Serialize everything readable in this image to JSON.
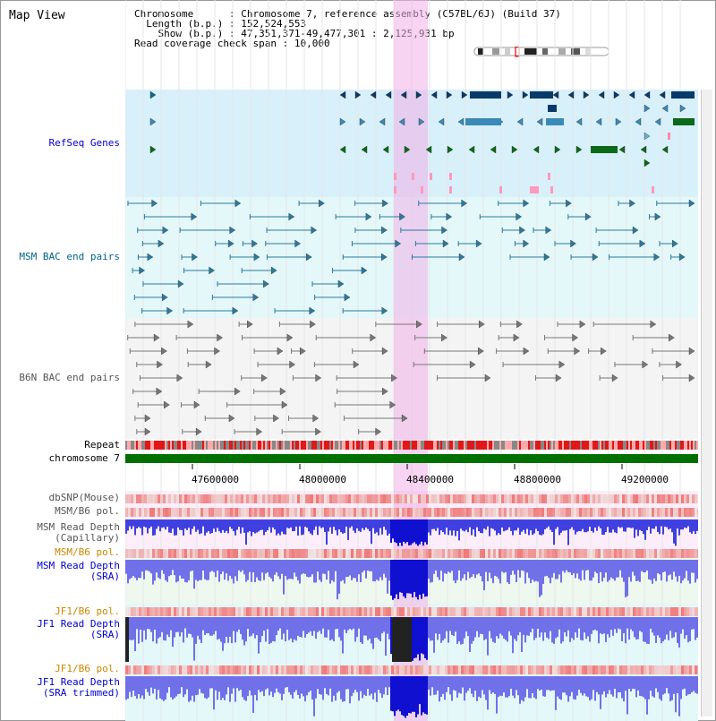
{
  "title": "Map View",
  "info": {
    "chromosome_key": "Chromosome",
    "chromosome_val": "Chromosome 7, reference assembly (C57BL/6J) (Build 37)",
    "length_key": "Length (b.p.)",
    "length_val": "152,524,553",
    "show_key": "Show (b.p.)",
    "show_val": "47,351,371-49,477,301 : 2,125,931 bp",
    "span_key": "Read coverage check span",
    "span_val": "10,000"
  },
  "track_labels": {
    "refseq": "RefSeq Genes",
    "msm_bac": "MSM BAC end pairs",
    "b6n_bac": "B6N BAC end pairs",
    "repeat": "Repeat",
    "chromosome": "chromosome 7",
    "dbsnp": "dbSNP(Mouse)",
    "msm_b6_pol_1": "MSM/B6 pol.",
    "msm_read_depth_cap": "MSM Read Depth\n(Capillary)",
    "msm_b6_pol_2": "MSM/B6 pol.",
    "msm_read_depth_sra": "MSM Read Depth\n(SRA)",
    "jf1_b6_pol_1": "JF1/B6 pol.",
    "jf1_read_depth_sra": "JF1 Read Depth\n(SRA)",
    "jf1_b6_pol_2": "JF1/B6 pol.",
    "jf1_read_depth_trim": "JF1 Read Depth\n(SRA trimmed)"
  },
  "axis_ticks": [
    "47600000",
    "48000000",
    "48400000",
    "48800000",
    "49200000"
  ],
  "colors": {
    "refseq_label": "#0000cc",
    "msm_label": "#006688",
    "b6n_label": "#666666",
    "orange_label": "#cc8800",
    "depth_label": "#0000cc",
    "highlight": "#f0b0e8",
    "chromosome_bar": "#007000"
  }
}
